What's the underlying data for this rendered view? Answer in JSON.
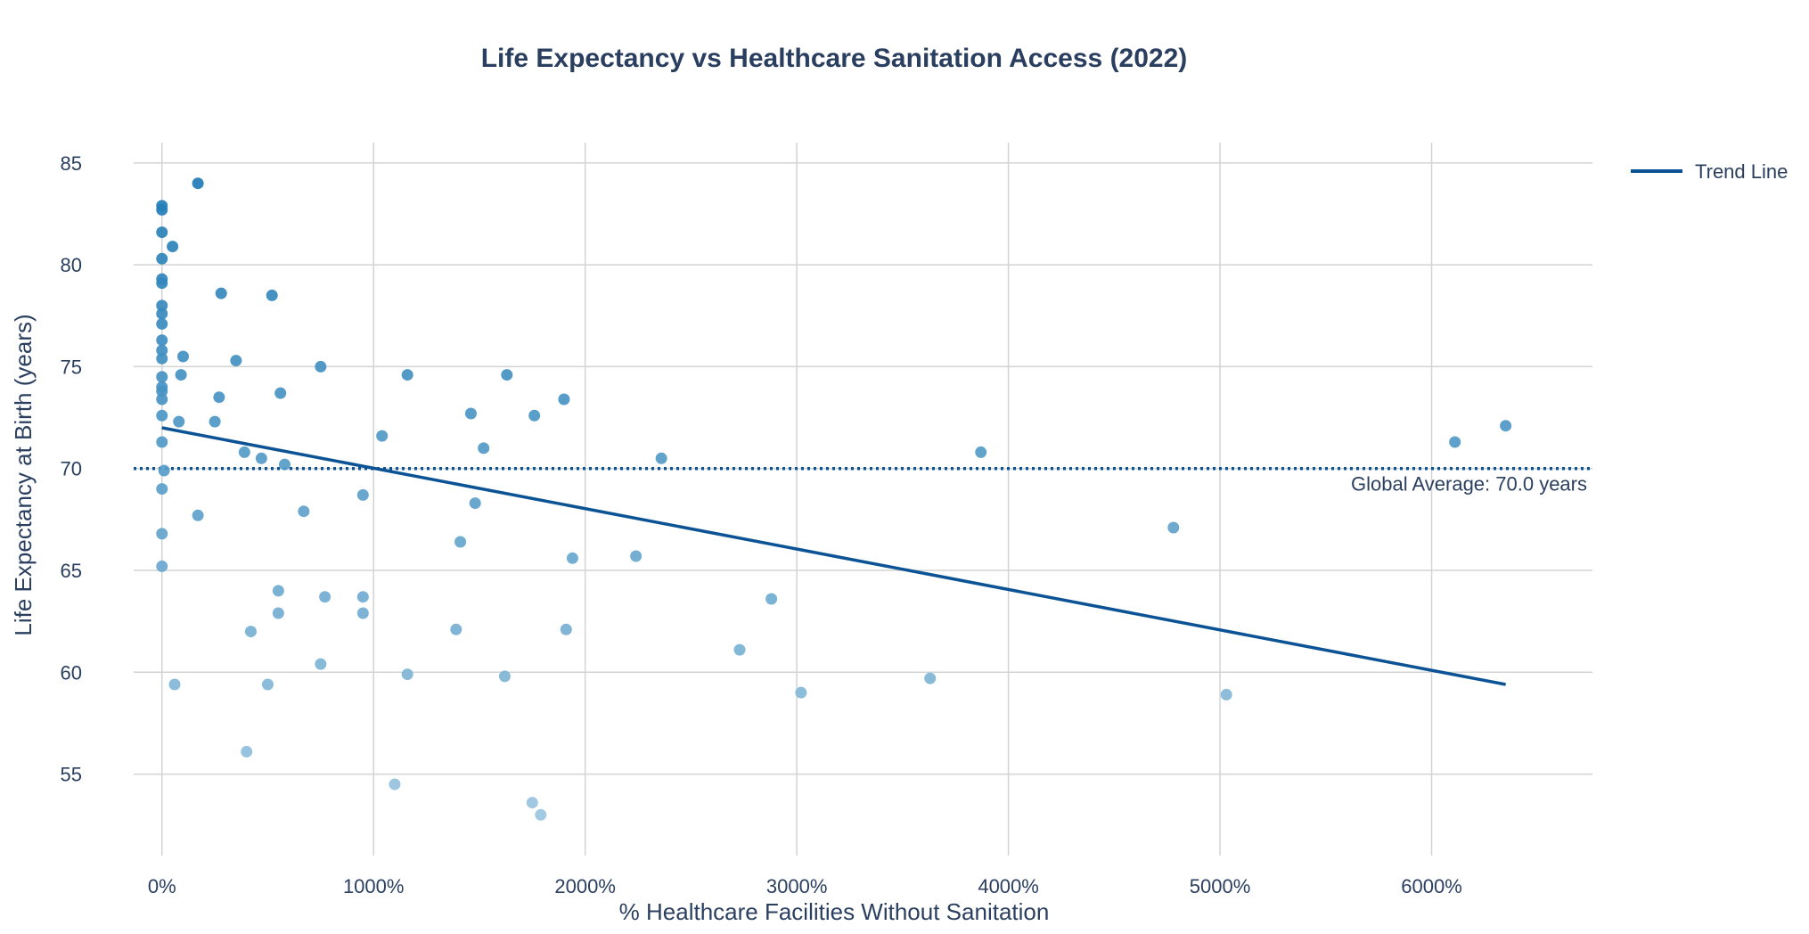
{
  "chart_data": {
    "type": "scatter",
    "title": "Life Expectancy vs Healthcare Sanitation Access (2022)",
    "xlabel": "% Healthcare Facilities Without Sanitation",
    "ylabel": "Life Expectancy at Birth (years)",
    "xlim": [
      -260,
      6760
    ],
    "ylim": [
      51,
      86
    ],
    "x_ticks": [
      0,
      1000,
      2000,
      3000,
      4000,
      5000,
      6000
    ],
    "x_tick_labels": [
      "0%",
      "1000%",
      "2000%",
      "3000%",
      "4000%",
      "5000%",
      "6000%"
    ],
    "y_ticks": [
      55,
      60,
      65,
      70,
      75,
      80,
      85
    ],
    "y_tick_labels": [
      "55",
      "60",
      "65",
      "70",
      "75",
      "80",
      "85"
    ],
    "grid": true,
    "legend": "top-right",
    "points": [
      {
        "x": 0,
        "y": 82.9
      },
      {
        "x": 0,
        "y": 82.7
      },
      {
        "x": 0,
        "y": 81.6
      },
      {
        "x": 0,
        "y": 80.3
      },
      {
        "x": 0,
        "y": 79.3
      },
      {
        "x": 0,
        "y": 79.1
      },
      {
        "x": 0,
        "y": 78.0
      },
      {
        "x": 0,
        "y": 77.6
      },
      {
        "x": 0,
        "y": 77.1
      },
      {
        "x": 0,
        "y": 76.3
      },
      {
        "x": 0,
        "y": 75.8
      },
      {
        "x": 0,
        "y": 75.4
      },
      {
        "x": 0,
        "y": 74.5
      },
      {
        "x": 0,
        "y": 74.0
      },
      {
        "x": 0,
        "y": 73.8
      },
      {
        "x": 0,
        "y": 73.4
      },
      {
        "x": 0,
        "y": 72.6
      },
      {
        "x": 0,
        "y": 71.3
      },
      {
        "x": 0,
        "y": 69.0
      },
      {
        "x": 0,
        "y": 66.8
      },
      {
        "x": 0,
        "y": 65.2
      },
      {
        "x": 10,
        "y": 69.9
      },
      {
        "x": 50,
        "y": 80.9
      },
      {
        "x": 60,
        "y": 59.4
      },
      {
        "x": 80,
        "y": 72.3
      },
      {
        "x": 90,
        "y": 74.6
      },
      {
        "x": 100,
        "y": 75.5
      },
      {
        "x": 170,
        "y": 84.0
      },
      {
        "x": 170,
        "y": 67.7
      },
      {
        "x": 250,
        "y": 72.3
      },
      {
        "x": 270,
        "y": 73.5
      },
      {
        "x": 280,
        "y": 78.6
      },
      {
        "x": 350,
        "y": 75.3
      },
      {
        "x": 390,
        "y": 70.8
      },
      {
        "x": 400,
        "y": 56.1
      },
      {
        "x": 420,
        "y": 62.0
      },
      {
        "x": 470,
        "y": 70.5
      },
      {
        "x": 500,
        "y": 59.4
      },
      {
        "x": 520,
        "y": 78.5
      },
      {
        "x": 550,
        "y": 64.0
      },
      {
        "x": 550,
        "y": 62.9
      },
      {
        "x": 560,
        "y": 73.7
      },
      {
        "x": 580,
        "y": 70.2
      },
      {
        "x": 670,
        "y": 67.9
      },
      {
        "x": 750,
        "y": 75.0
      },
      {
        "x": 750,
        "y": 60.4
      },
      {
        "x": 770,
        "y": 63.7
      },
      {
        "x": 950,
        "y": 68.7
      },
      {
        "x": 950,
        "y": 63.7
      },
      {
        "x": 950,
        "y": 62.9
      },
      {
        "x": 1040,
        "y": 71.6
      },
      {
        "x": 1100,
        "y": 54.5
      },
      {
        "x": 1160,
        "y": 74.6
      },
      {
        "x": 1160,
        "y": 59.9
      },
      {
        "x": 1390,
        "y": 62.1
      },
      {
        "x": 1410,
        "y": 66.4
      },
      {
        "x": 1460,
        "y": 72.7
      },
      {
        "x": 1480,
        "y": 68.3
      },
      {
        "x": 1520,
        "y": 71.0
      },
      {
        "x": 1620,
        "y": 59.8
      },
      {
        "x": 1630,
        "y": 74.6
      },
      {
        "x": 1750,
        "y": 53.6
      },
      {
        "x": 1760,
        "y": 72.6
      },
      {
        "x": 1790,
        "y": 53.0
      },
      {
        "x": 1900,
        "y": 73.4
      },
      {
        "x": 1910,
        "y": 62.1
      },
      {
        "x": 1940,
        "y": 65.6
      },
      {
        "x": 2240,
        "y": 65.7
      },
      {
        "x": 2360,
        "y": 70.5
      },
      {
        "x": 2730,
        "y": 61.1
      },
      {
        "x": 2880,
        "y": 63.6
      },
      {
        "x": 3020,
        "y": 59.0
      },
      {
        "x": 3630,
        "y": 59.7
      },
      {
        "x": 3870,
        "y": 70.8
      },
      {
        "x": 4780,
        "y": 67.1
      },
      {
        "x": 5030,
        "y": 58.9
      },
      {
        "x": 6110,
        "y": 71.3
      },
      {
        "x": 6350,
        "y": 72.1
      }
    ],
    "trend_line": {
      "name": "Trend Line",
      "x": [
        0,
        6350
      ],
      "y": [
        72.0,
        59.4
      ],
      "color": "#0b5394"
    },
    "reference_line": {
      "y": 70.0,
      "label": "Global Average: 70.0 years",
      "color": "#0b5394",
      "style": "dotted"
    },
    "colors": {
      "marker_dark": "#1f7bb6",
      "marker_light": "#9ac5df",
      "grid": "#d3d3d3",
      "text": "#2a3f5f"
    }
  }
}
